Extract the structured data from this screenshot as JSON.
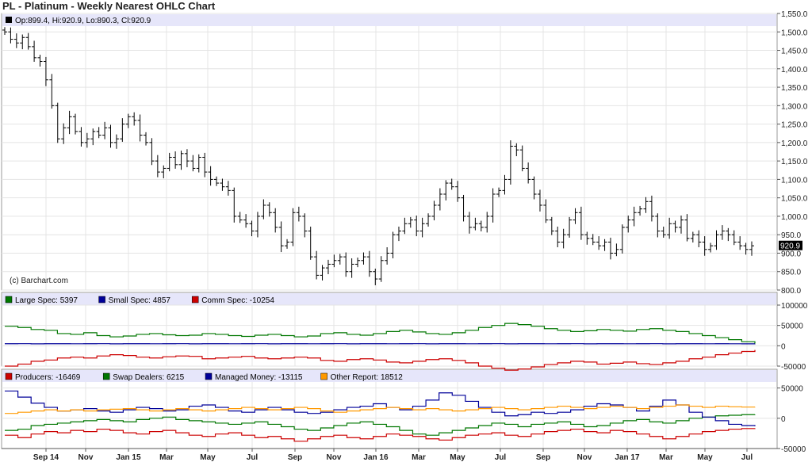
{
  "title": "PL - Platinum - Weekly Nearest OHLC Chart",
  "copyright": "(c) Barchart.com",
  "colors": {
    "bg_header": "#e6e6fa",
    "grid": "#e4e4e4",
    "frame": "#999999",
    "price_line": "#000000"
  },
  "chart_data": [
    {
      "type": "ohlc",
      "panel": "price",
      "legend": "Op:899.4, Hi:920.9, Lo:890.3, Cl:920.9",
      "last_value_label": "920.9",
      "last_value": 920.9,
      "ylim": [
        800,
        1550
      ],
      "y_ticks": [
        "1,550.0",
        "1,500.0",
        "1,450.0",
        "1,400.0",
        "1,350.0",
        "1,300.0",
        "1,250.0",
        "1,200.0",
        "1,150.0",
        "1,100.0",
        "1,050.0",
        "1,000.0",
        "950.0",
        "900.0",
        "850.0",
        "800.0"
      ],
      "x_ticks": [
        "Sep 14",
        "Nov",
        "Jan 15",
        "Mar",
        "May",
        "Jul",
        "Sep",
        "Nov",
        "Jan 16",
        "Mar",
        "May",
        "Jul",
        "Sep",
        "Nov",
        "Jan 17",
        "Mar",
        "May",
        "Jul"
      ],
      "closes": [
        1500,
        1480,
        1470,
        1485,
        1460,
        1430,
        1420,
        1370,
        1300,
        1210,
        1240,
        1270,
        1230,
        1200,
        1210,
        1230,
        1220,
        1240,
        1200,
        1210,
        1250,
        1270,
        1260,
        1220,
        1200,
        1150,
        1120,
        1130,
        1160,
        1140,
        1170,
        1150,
        1130,
        1160,
        1120,
        1100,
        1090,
        1080,
        1070,
        1000,
        990,
        980,
        960,
        1000,
        1030,
        1010,
        970,
        920,
        930,
        1010,
        1000,
        960,
        890,
        840,
        860,
        870,
        880,
        890,
        850,
        870,
        880,
        890,
        850,
        830,
        880,
        900,
        950,
        960,
        980,
        990,
        960,
        980,
        1000,
        1030,
        1060,
        1090,
        1080,
        1050,
        1000,
        970,
        980,
        970,
        1000,
        1060,
        1070,
        1100,
        1190,
        1180,
        1130,
        1100,
        1060,
        1030,
        990,
        960,
        930,
        950,
        990,
        1010,
        950,
        940,
        930,
        920,
        930,
        900,
        910,
        970,
        990,
        1010,
        1020,
        1040,
        1000,
        960,
        950,
        980,
        970,
        990,
        940,
        950,
        930,
        910,
        920,
        950,
        960,
        950,
        930,
        920,
        910,
        920
      ],
      "min_low": 815,
      "max_high": 1520
    },
    {
      "type": "line",
      "panel": "speculators",
      "ylim": [
        -50000,
        100000
      ],
      "y_ticks": [
        "100000",
        "50000",
        "0",
        "-50000"
      ],
      "series": [
        {
          "name": "Large Spec: 5397",
          "color": "#007700",
          "values": [
            48000,
            45000,
            40000,
            38000,
            30000,
            28000,
            32000,
            25000,
            22000,
            24000,
            28000,
            30000,
            27000,
            25000,
            26000,
            30000,
            28000,
            25000,
            23000,
            26000,
            28000,
            25000,
            22000,
            24000,
            30000,
            32000,
            28000,
            26000,
            30000,
            35000,
            38000,
            34000,
            30000,
            28000,
            32000,
            38000,
            45000,
            50000,
            55000,
            52000,
            48000,
            42000,
            38000,
            35000,
            37000,
            40000,
            38000,
            36000,
            40000,
            42000,
            38000,
            35000,
            30000,
            25000,
            20000,
            15000,
            10000,
            5397
          ]
        },
        {
          "name": "Small Spec: 4857",
          "color": "#000099",
          "values": [
            5000,
            5200,
            4800,
            5000,
            5100,
            4900,
            5000,
            5200,
            4800,
            5000,
            5100,
            4900,
            5000,
            5200,
            4800,
            5000,
            5100,
            4900,
            5000,
            5200,
            4800,
            5000,
            5100,
            4900,
            5000,
            5200,
            4800,
            5000,
            5100,
            4900,
            5000,
            5200,
            4800,
            5000,
            5100,
            4900,
            5000,
            5200,
            4800,
            5000,
            5100,
            4900,
            5000,
            5200,
            4800,
            5000,
            5100,
            4900,
            5000,
            5200,
            4800,
            5000,
            5100,
            4900,
            5000,
            4900,
            4800,
            4857
          ]
        },
        {
          "name": "Comm Spec: -10254",
          "color": "#cc0000",
          "values": [
            -50000,
            -45000,
            -38000,
            -35000,
            -30000,
            -28000,
            -30000,
            -25000,
            -22000,
            -24000,
            -28000,
            -30000,
            -27000,
            -25000,
            -26000,
            -32000,
            -30000,
            -28000,
            -26000,
            -30000,
            -32000,
            -30000,
            -28000,
            -30000,
            -36000,
            -38000,
            -34000,
            -32000,
            -35000,
            -40000,
            -42000,
            -38000,
            -34000,
            -32000,
            -36000,
            -42000,
            -50000,
            -55000,
            -60000,
            -57000,
            -52000,
            -46000,
            -42000,
            -38000,
            -40000,
            -45000,
            -43000,
            -40000,
            -44000,
            -46000,
            -42000,
            -38000,
            -32000,
            -28000,
            -22000,
            -18000,
            -14000,
            -10254
          ]
        }
      ]
    },
    {
      "type": "line",
      "panel": "cot_detail",
      "ylim": [
        -50000,
        60000
      ],
      "y_ticks": [
        "50000",
        "0",
        "-50000"
      ],
      "series": [
        {
          "name": "Producers: -16469",
          "color": "#cc0000",
          "values": [
            -28000,
            -32000,
            -26000,
            -22000,
            -24000,
            -20000,
            -22000,
            -18000,
            -20000,
            -24000,
            -26000,
            -22000,
            -20000,
            -24000,
            -28000,
            -30000,
            -26000,
            -24000,
            -28000,
            -32000,
            -30000,
            -34000,
            -38000,
            -34000,
            -30000,
            -28000,
            -32000,
            -34000,
            -30000,
            -26000,
            -28000,
            -30000,
            -34000,
            -36000,
            -32000,
            -28000,
            -26000,
            -24000,
            -28000,
            -30000,
            -26000,
            -22000,
            -20000,
            -18000,
            -22000,
            -24000,
            -20000,
            -22000,
            -26000,
            -30000,
            -34000,
            -30000,
            -26000,
            -22000,
            -20000,
            -18000,
            -17000,
            -16469
          ]
        },
        {
          "name": "Swap Dealers: 6215",
          "color": "#007700",
          "values": [
            -20000,
            -18000,
            -12000,
            -10000,
            -8000,
            -6000,
            -4000,
            -2000,
            -4000,
            -6000,
            -2000,
            0,
            2000,
            -2000,
            -4000,
            -6000,
            -8000,
            -10000,
            -8000,
            -6000,
            -10000,
            -14000,
            -18000,
            -20000,
            -16000,
            -12000,
            -8000,
            -6000,
            -10000,
            -14000,
            -20000,
            -26000,
            -28000,
            -24000,
            -20000,
            -16000,
            -12000,
            -8000,
            -10000,
            -14000,
            -10000,
            -8000,
            -6000,
            -10000,
            -14000,
            -12000,
            -8000,
            -4000,
            -2000,
            -6000,
            -8000,
            -4000,
            0,
            2000,
            4000,
            5000,
            6000,
            6215
          ]
        },
        {
          "name": "Managed Money: -13115",
          "color": "#000099",
          "values": [
            45000,
            35000,
            25000,
            18000,
            12000,
            14000,
            16000,
            12000,
            10000,
            14000,
            18000,
            16000,
            12000,
            14000,
            20000,
            22000,
            18000,
            12000,
            10000,
            14000,
            18000,
            14000,
            10000,
            8000,
            10000,
            14000,
            18000,
            20000,
            24000,
            18000,
            14000,
            20000,
            30000,
            42000,
            38000,
            28000,
            18000,
            10000,
            4000,
            6000,
            10000,
            8000,
            10000,
            14000,
            20000,
            24000,
            22000,
            18000,
            12000,
            20000,
            30000,
            22000,
            10000,
            2000,
            -4000,
            -10000,
            -12000,
            -13115
          ]
        },
        {
          "name": "Other Report: 18512",
          "color": "#ff9900",
          "values": [
            8000,
            10000,
            12000,
            14000,
            12000,
            14000,
            12000,
            14000,
            15000,
            16000,
            14000,
            12000,
            14000,
            16000,
            14000,
            12000,
            14000,
            16000,
            18000,
            16000,
            14000,
            16000,
            18000,
            16000,
            12000,
            10000,
            12000,
            14000,
            16000,
            18000,
            16000,
            14000,
            16000,
            14000,
            12000,
            14000,
            16000,
            18000,
            16000,
            14000,
            16000,
            18000,
            20000,
            18000,
            16000,
            18000,
            20000,
            18000,
            16000,
            18000,
            20000,
            22000,
            20000,
            18000,
            20000,
            19000,
            18500,
            18512
          ]
        }
      ]
    }
  ]
}
